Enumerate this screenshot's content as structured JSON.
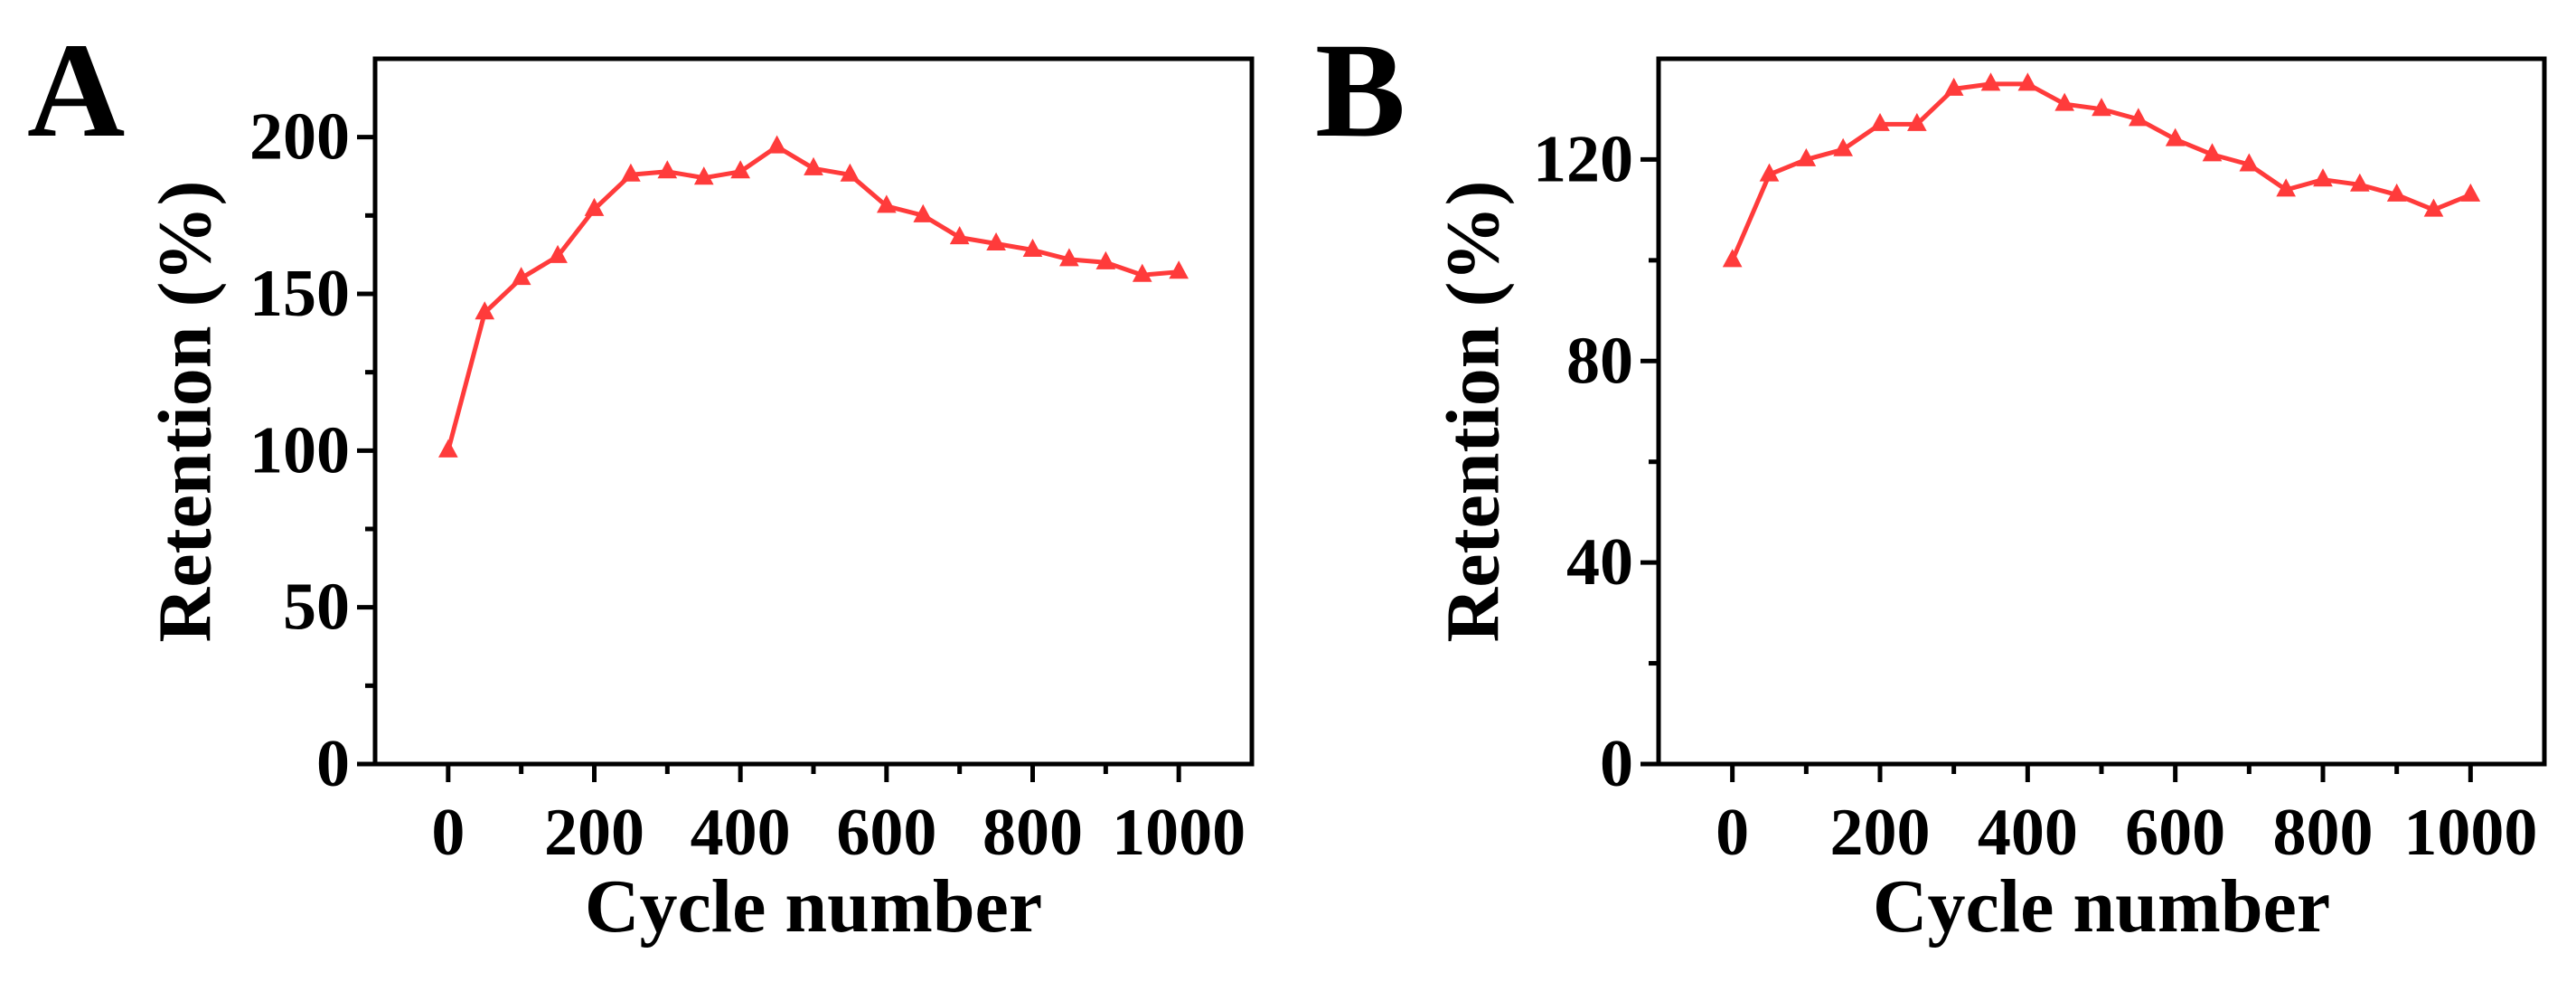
{
  "figure": {
    "colors": {
      "series": "#ff3b3b",
      "axis": "#000000",
      "background": "#ffffff"
    }
  },
  "chart_data": [
    {
      "type": "line",
      "panel_label": "A",
      "xlabel": "Cycle number",
      "ylabel": "Retention (%)",
      "xlim": [
        -100,
        1100
      ],
      "ylim": [
        0,
        225
      ],
      "xticks": [
        0,
        200,
        400,
        600,
        800,
        1000
      ],
      "xtick_labels": [
        "0",
        "200",
        "400",
        "600",
        "800",
        "1000"
      ],
      "yticks": [
        0,
        50,
        100,
        150,
        200
      ],
      "ytick_labels": [
        "0",
        "50",
        "100",
        "150",
        "200"
      ],
      "y_minor_step": 25,
      "marker": "triangle",
      "series": [
        {
          "name": "A",
          "x": [
            0,
            50,
            100,
            150,
            200,
            250,
            300,
            350,
            400,
            450,
            500,
            550,
            600,
            650,
            700,
            750,
            800,
            850,
            900,
            950,
            1000
          ],
          "y": [
            100,
            144,
            155,
            162,
            177,
            188,
            189,
            187,
            189,
            197,
            190,
            188,
            178,
            175,
            168,
            166,
            164,
            161,
            160,
            156,
            157
          ]
        }
      ]
    },
    {
      "type": "line",
      "panel_label": "B",
      "xlabel": "Cycle number",
      "ylabel": "Retention (%)",
      "xlim": [
        -100,
        1100
      ],
      "ylim": [
        0,
        140
      ],
      "xticks": [
        0,
        200,
        400,
        600,
        800,
        1000
      ],
      "xtick_labels": [
        "0",
        "200",
        "400",
        "600",
        "800",
        "1000"
      ],
      "yticks": [
        0,
        40,
        80,
        120
      ],
      "ytick_labels": [
        "0",
        "40",
        "80",
        "120"
      ],
      "y_minor_step": 20,
      "marker": "triangle",
      "series": [
        {
          "name": "B",
          "x": [
            0,
            50,
            100,
            150,
            200,
            250,
            300,
            350,
            400,
            450,
            500,
            550,
            600,
            650,
            700,
            750,
            800,
            850,
            900,
            950,
            1000
          ],
          "y": [
            100,
            117,
            120,
            122,
            127,
            127,
            134,
            135,
            135,
            131,
            130,
            128,
            124,
            121,
            119,
            114,
            116,
            115,
            113,
            110,
            113
          ]
        }
      ]
    }
  ]
}
